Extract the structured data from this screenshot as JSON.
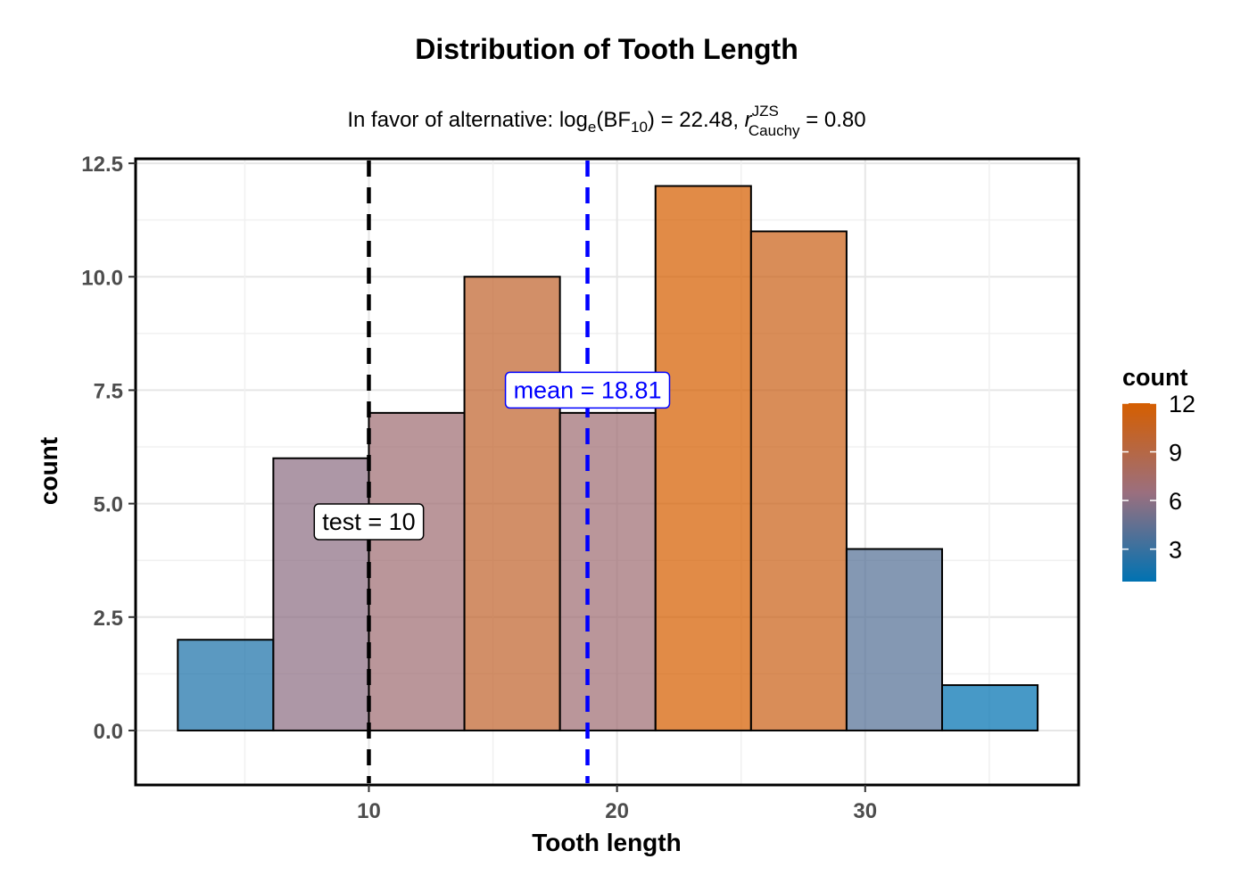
{
  "chart_data": {
    "type": "bar",
    "title": "Distribution of Tooth Length",
    "subtitle": {
      "prefix": "In favor of alternative: log",
      "log_sub": "e",
      "bf": "(BF",
      "bf_sub": "10",
      "bf_value": ") = 22.48, ",
      "r": "r",
      "r_sup": "JZS",
      "r_sub": "Cauchy",
      "r_value": " = 0.80"
    },
    "xlabel": "Tooth length",
    "ylabel": "count",
    "xlim": [
      0.6,
      38.6
    ],
    "ylim": [
      -1.2,
      12.6
    ],
    "x_ticks": [
      10,
      20,
      30
    ],
    "y_ticks": [
      0.0,
      2.5,
      5.0,
      7.5,
      10.0,
      12.5
    ],
    "y_tick_labels": [
      "0.0",
      "2.5",
      "5.0",
      "7.5",
      "10.0",
      "12.5"
    ],
    "grid": true,
    "bins": [
      {
        "x0": 2.3,
        "x1": 6.15,
        "count": 2
      },
      {
        "x0": 6.15,
        "x1": 10.0,
        "count": 6
      },
      {
        "x0": 10.0,
        "x1": 13.85,
        "count": 7
      },
      {
        "x0": 13.85,
        "x1": 17.7,
        "count": 10
      },
      {
        "x0": 17.7,
        "x1": 21.55,
        "count": 7
      },
      {
        "x0": 21.55,
        "x1": 25.4,
        "count": 12
      },
      {
        "x0": 25.4,
        "x1": 29.25,
        "count": 11
      },
      {
        "x0": 29.25,
        "x1": 33.1,
        "count": 4
      },
      {
        "x0": 33.1,
        "x1": 36.95,
        "count": 1
      }
    ],
    "reference_lines": [
      {
        "name": "test",
        "x": 10,
        "label_name": "test",
        "label_value": "10",
        "label_y": 4.6,
        "color": "#000000"
      },
      {
        "name": "mean",
        "x": 18.81,
        "label_name": "mean",
        "label_value": "18.81",
        "label_y": 7.5,
        "color": "#0000ff"
      }
    ],
    "legend": {
      "title": "count",
      "position": "right",
      "min": 1,
      "max": 12,
      "ticks": [
        3,
        6,
        9,
        12
      ],
      "low_color": "#0072b2",
      "high_color": "#d55e00"
    }
  }
}
